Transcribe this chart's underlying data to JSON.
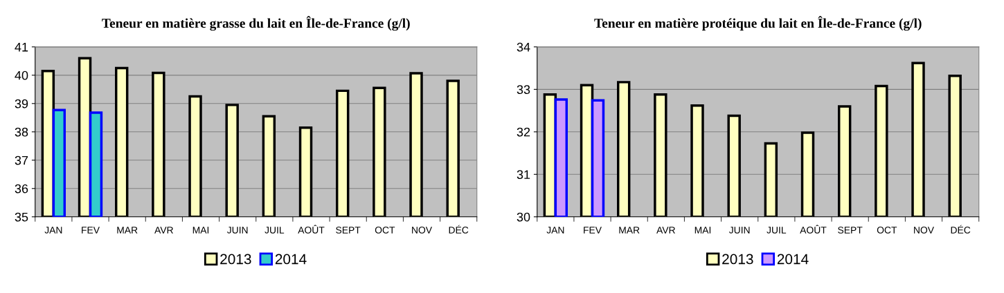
{
  "chart_data": [
    {
      "type": "bar",
      "title": "Teneur en matière grasse du lait en Île-de-France (g/l)",
      "categories": [
        "JAN",
        "FEV",
        "MAR",
        "AVR",
        "MAI",
        "JUIN",
        "JUIL",
        "AOÛT",
        "SEPT",
        "OCT",
        "NOV",
        "DÉC"
      ],
      "series": [
        {
          "name": "2013",
          "color": "#ffffc0",
          "values": [
            40.15,
            40.6,
            40.25,
            40.08,
            39.25,
            38.95,
            38.55,
            38.15,
            39.45,
            39.55,
            40.07,
            39.8
          ]
        },
        {
          "name": "2014",
          "color": "#33cccc",
          "values": [
            38.77,
            38.68,
            null,
            null,
            null,
            null,
            null,
            null,
            null,
            null,
            null,
            null
          ]
        }
      ],
      "ylim": [
        35,
        41
      ],
      "yticks": [
        35,
        36,
        37,
        38,
        39,
        40,
        41
      ],
      "grid": "y",
      "legend": "bottom"
    },
    {
      "type": "bar",
      "title": "Teneur en matière protéique du lait en Île-de-France (g/l)",
      "categories": [
        "JAN",
        "FEV",
        "MAR",
        "AVR",
        "MAI",
        "JUIN",
        "JUIL",
        "AOÛT",
        "SEPT",
        "OCT",
        "NOV",
        "DÉC"
      ],
      "series": [
        {
          "name": "2013",
          "color": "#ffffc0",
          "values": [
            32.88,
            33.1,
            33.17,
            32.88,
            32.62,
            32.38,
            31.73,
            31.98,
            32.6,
            33.08,
            33.62,
            33.32
          ]
        },
        {
          "name": "2014",
          "color": "#cc99ff",
          "values": [
            32.76,
            32.74,
            null,
            null,
            null,
            null,
            null,
            null,
            null,
            null,
            null,
            null
          ]
        }
      ],
      "ylim": [
        30,
        34
      ],
      "yticks": [
        30,
        31,
        32,
        33,
        34
      ],
      "grid": "y",
      "legend": "bottom"
    }
  ]
}
